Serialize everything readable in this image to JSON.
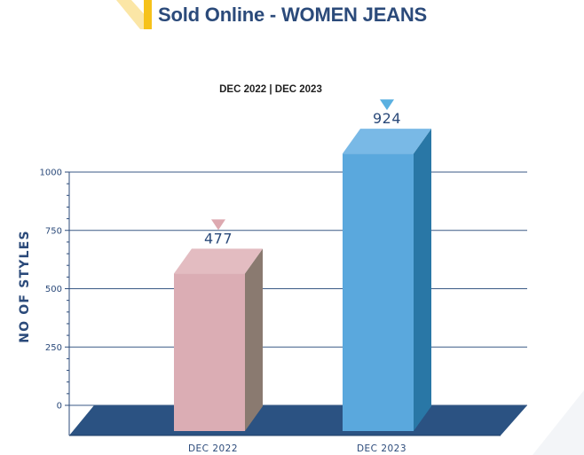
{
  "page": {
    "title": "Sold Online - WOMEN JEANS",
    "subtitle": "DEC 2022  |  DEC 2023"
  },
  "colors": {
    "title": "#2b4a7a",
    "axis": "#2b4a7a",
    "floor": "#2b5282",
    "accent_yellow": "#f6c21b",
    "accent_yellow_light": "#fbe6a6"
  },
  "chart_data": {
    "type": "bar",
    "categories": [
      "DEC 2022",
      "DEC 2023"
    ],
    "values": [
      477,
      924
    ],
    "title": "DEC 2022  |  DEC 2023",
    "xlabel": "",
    "ylabel": "NO OF STYLES",
    "ylim": [
      0,
      1000
    ],
    "yticks": [
      0,
      250,
      500,
      750,
      1000
    ],
    "grid": true,
    "bar_colors": [
      {
        "front": "#dbadb4",
        "top": "#e3bcc1",
        "side": "#8a7a70",
        "marker": "#dda9b0"
      },
      {
        "front": "#5aa8dd",
        "top": "#79b9e6",
        "side": "#2977a6",
        "marker": "#5ab0e0"
      }
    ]
  }
}
